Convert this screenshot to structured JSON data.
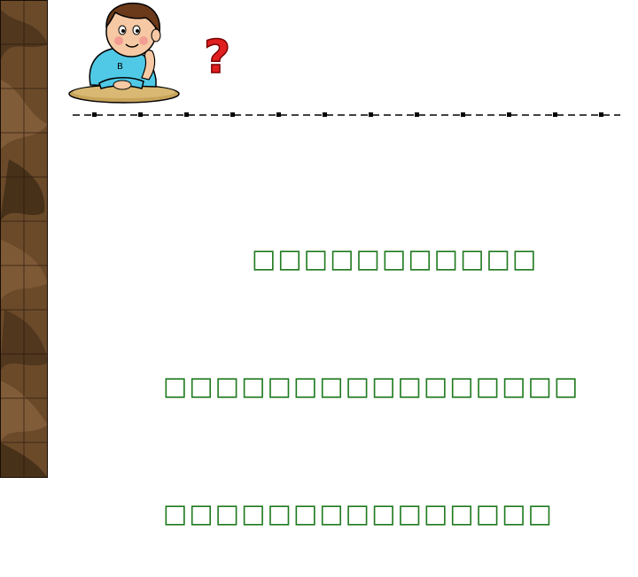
{
  "slide": {
    "question_mark": "?",
    "text_lines": [
      "□□□□□□□□□□□",
      "□□□□□□□□□□□□□□□□",
      "□□□□□□□□□□□□□□□"
    ]
  },
  "colors": {
    "text": "#1f7a1f",
    "question_mark": "#e02020",
    "strip_base": "#6b4a2a",
    "divider": "#000000"
  },
  "icons": {
    "left_strip": "wood-leaf-pattern",
    "character": "thinking-boy-icon"
  }
}
